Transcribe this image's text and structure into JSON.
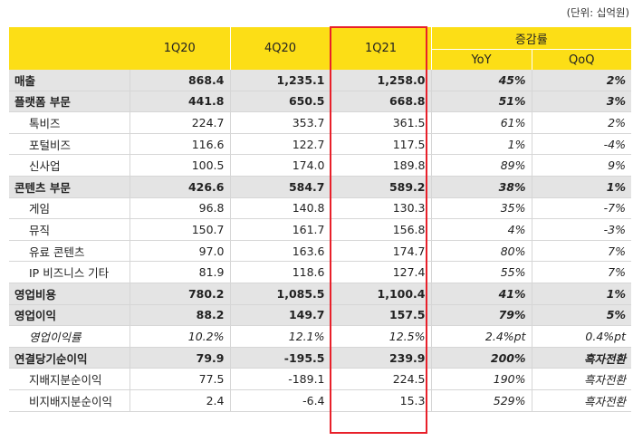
{
  "unit_note": "(단위: 십억원)",
  "header": {
    "periods": [
      "1Q20",
      "4Q20",
      "1Q21"
    ],
    "change_group": "증감률",
    "change_cols": [
      "YoY",
      "QoQ"
    ]
  },
  "rows": [
    {
      "label": "매출",
      "v": [
        "868.4",
        "1,235.1",
        "1,258.0"
      ],
      "yoy": "45%",
      "qoq": "2%"
    },
    {
      "label": "플랫폼 부문",
      "v": [
        "441.8",
        "650.5",
        "668.8"
      ],
      "yoy": "51%",
      "qoq": "3%"
    },
    {
      "label": "톡비즈",
      "v": [
        "224.7",
        "353.7",
        "361.5"
      ],
      "yoy": "61%",
      "qoq": "2%"
    },
    {
      "label": "포털비즈",
      "v": [
        "116.6",
        "122.7",
        "117.5"
      ],
      "yoy": "1%",
      "qoq": "-4%"
    },
    {
      "label": "신사업",
      "v": [
        "100.5",
        "174.0",
        "189.8"
      ],
      "yoy": "89%",
      "qoq": "9%"
    },
    {
      "label": "콘텐츠 부문",
      "v": [
        "426.6",
        "584.7",
        "589.2"
      ],
      "yoy": "38%",
      "qoq": "1%"
    },
    {
      "label": "게임",
      "v": [
        "96.8",
        "140.8",
        "130.3"
      ],
      "yoy": "35%",
      "qoq": "-7%"
    },
    {
      "label": "뮤직",
      "v": [
        "150.7",
        "161.7",
        "156.8"
      ],
      "yoy": "4%",
      "qoq": "-3%"
    },
    {
      "label": "유료 콘텐츠",
      "v": [
        "97.0",
        "163.6",
        "174.7"
      ],
      "yoy": "80%",
      "qoq": "7%"
    },
    {
      "label": "IP 비즈니스 기타",
      "v": [
        "81.9",
        "118.6",
        "127.4"
      ],
      "yoy": "55%",
      "qoq": "7%"
    },
    {
      "label": "영업비용",
      "v": [
        "780.2",
        "1,085.5",
        "1,100.4"
      ],
      "yoy": "41%",
      "qoq": "1%"
    },
    {
      "label": "영업이익",
      "v": [
        "88.2",
        "149.7",
        "157.5"
      ],
      "yoy": "79%",
      "qoq": "5%"
    },
    {
      "label": "영업이익률",
      "v": [
        "10.2%",
        "12.1%",
        "12.5%"
      ],
      "yoy": "2.4%pt",
      "qoq": "0.4%pt"
    },
    {
      "label": "연결당기순이익",
      "v": [
        "79.9",
        "-195.5",
        "239.9"
      ],
      "yoy": "200%",
      "qoq": "흑자전환"
    },
    {
      "label": "지배지분순이익",
      "v": [
        "77.5",
        "-189.1",
        "224.5"
      ],
      "yoy": "190%",
      "qoq": "흑자전환"
    },
    {
      "label": "비지배지분순이익",
      "v": [
        "2.4",
        "-6.4",
        "15.3"
      ],
      "yoy": "529%",
      "qoq": "흑자전환"
    }
  ],
  "highlight_color": "#e8202a",
  "header_color": "#fcde16"
}
